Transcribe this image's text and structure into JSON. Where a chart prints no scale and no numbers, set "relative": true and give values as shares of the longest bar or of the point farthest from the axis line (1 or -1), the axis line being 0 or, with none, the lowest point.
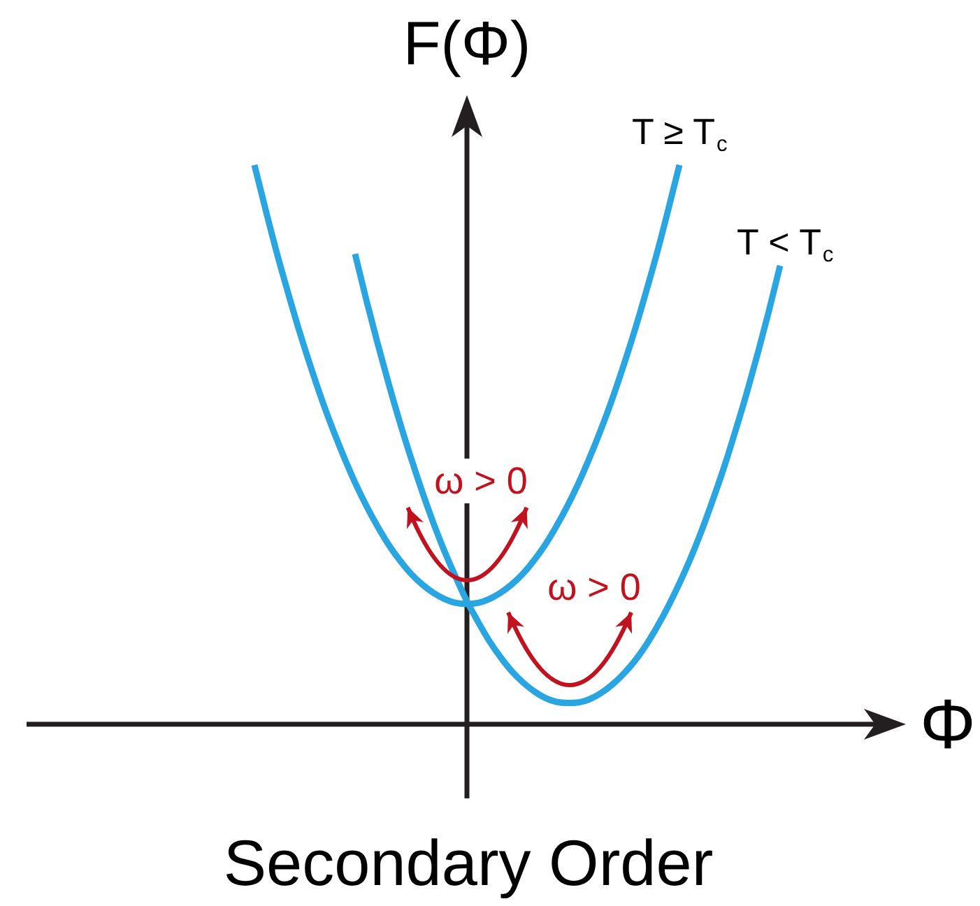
{
  "chart_data": {
    "type": "line",
    "title": "Secondary Order",
    "xlabel": "Φ",
    "ylabel": "F(Φ)",
    "relative": true,
    "categories": [
      null,
      null,
      null,
      null,
      null,
      null,
      null,
      null,
      null,
      null,
      null,
      null,
      null,
      null,
      null,
      null,
      null,
      null,
      null,
      null,
      null,
      null,
      null,
      null,
      null,
      null,
      null,
      null,
      null,
      null,
      null,
      null,
      null,
      null,
      null,
      null,
      null,
      null,
      null,
      null,
      null,
      null,
      null,
      null,
      null,
      null,
      null,
      null
    ],
    "series": [
      {
        "name": "T ≥ T$_{c}$",
        "color": "#29a6e1",
        "values": [
          1.0,
          0.92,
          0.843,
          0.772,
          0.704,
          0.641,
          0.582,
          0.528,
          0.478,
          0.432,
          0.391,
          0.354,
          0.321,
          0.293,
          0.269,
          0.25,
          0.235,
          0.224,
          0.217,
          0.215,
          0.217,
          0.224,
          0.235,
          0.25,
          0.269,
          0.293,
          0.321,
          0.354,
          0.391,
          0.432,
          0.478,
          0.528,
          0.582,
          0.641,
          0.704,
          0.772,
          0.843,
          0.92,
          1.0,
          null,
          null,
          null,
          null,
          null,
          null,
          null,
          null,
          null
        ]
      },
      {
        "name": "T < T$_{c}$",
        "color": "#29a6e1",
        "values": [
          null,
          null,
          null,
          null,
          null,
          null,
          null,
          null,
          null,
          0.841,
          0.759,
          0.682,
          0.609,
          0.54,
          0.476,
          0.416,
          0.36,
          0.309,
          0.263,
          0.22,
          0.183,
          0.149,
          0.12,
          0.095,
          0.075,
          0.059,
          0.047,
          0.04,
          0.038,
          0.039,
          0.045,
          0.056,
          0.071,
          0.09,
          0.113,
          0.141,
          0.174,
          0.211,
          0.252,
          0.297,
          0.347,
          0.402,
          0.46,
          0.524,
          0.591,
          0.663,
          0.739,
          0.82
        ]
      }
    ],
    "annotations": [
      "ω > 0",
      "ω > 0"
    ]
  }
}
